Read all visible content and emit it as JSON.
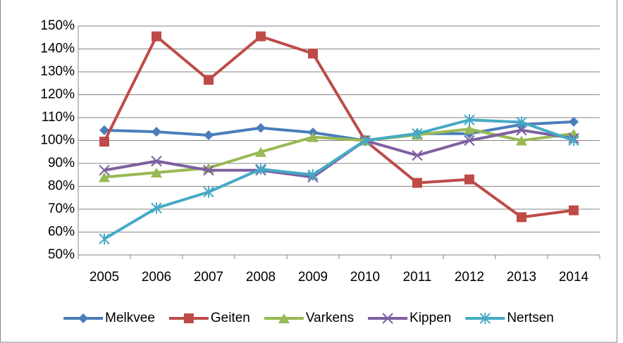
{
  "chart_data": {
    "type": "line",
    "categories": [
      "2005",
      "2006",
      "2007",
      "2008",
      "2009",
      "2010",
      "2011",
      "2012",
      "2013",
      "2014"
    ],
    "series": [
      {
        "name": "Melkvee",
        "color": "#4a7ebb",
        "marker": "diamond",
        "values": [
          104.5,
          103.8,
          102.3,
          105.5,
          103.5,
          100,
          103,
          103,
          107,
          108.2
        ]
      },
      {
        "name": "Geiten",
        "color": "#be4b48",
        "marker": "square",
        "values": [
          99.5,
          145.5,
          126.5,
          145.5,
          138,
          100,
          81.5,
          83,
          66.5,
          69.5
        ]
      },
      {
        "name": "Varkens",
        "color": "#98b954",
        "marker": "triangle",
        "values": [
          84,
          86,
          88,
          95,
          101.5,
          100,
          102.5,
          105,
          100,
          103
        ]
      },
      {
        "name": "Kippen",
        "color": "#7d60a0",
        "marker": "x",
        "values": [
          87,
          91,
          87,
          87,
          84,
          100,
          93.5,
          100,
          104.5,
          101
        ]
      },
      {
        "name": "Nertsen",
        "color": "#46aac5",
        "marker": "asterisk",
        "values": [
          57,
          70.5,
          77.5,
          87.5,
          85,
          100,
          103,
          109,
          108,
          100
        ]
      }
    ],
    "ylim": [
      50,
      150
    ],
    "yticks": [
      {
        "value": 50,
        "label": "50%"
      },
      {
        "value": 60,
        "label": "60%"
      },
      {
        "value": 70,
        "label": "70%"
      },
      {
        "value": 80,
        "label": "80%"
      },
      {
        "value": 90,
        "label": "90%"
      },
      {
        "value": 100,
        "label": "100%"
      },
      {
        "value": 110,
        "label": "110%"
      },
      {
        "value": 120,
        "label": "120%"
      },
      {
        "value": 130,
        "label": "130%"
      },
      {
        "value": 140,
        "label": "140%"
      },
      {
        "value": 150,
        "label": "150%"
      }
    ],
    "grid": true,
    "legend": "bottom"
  }
}
